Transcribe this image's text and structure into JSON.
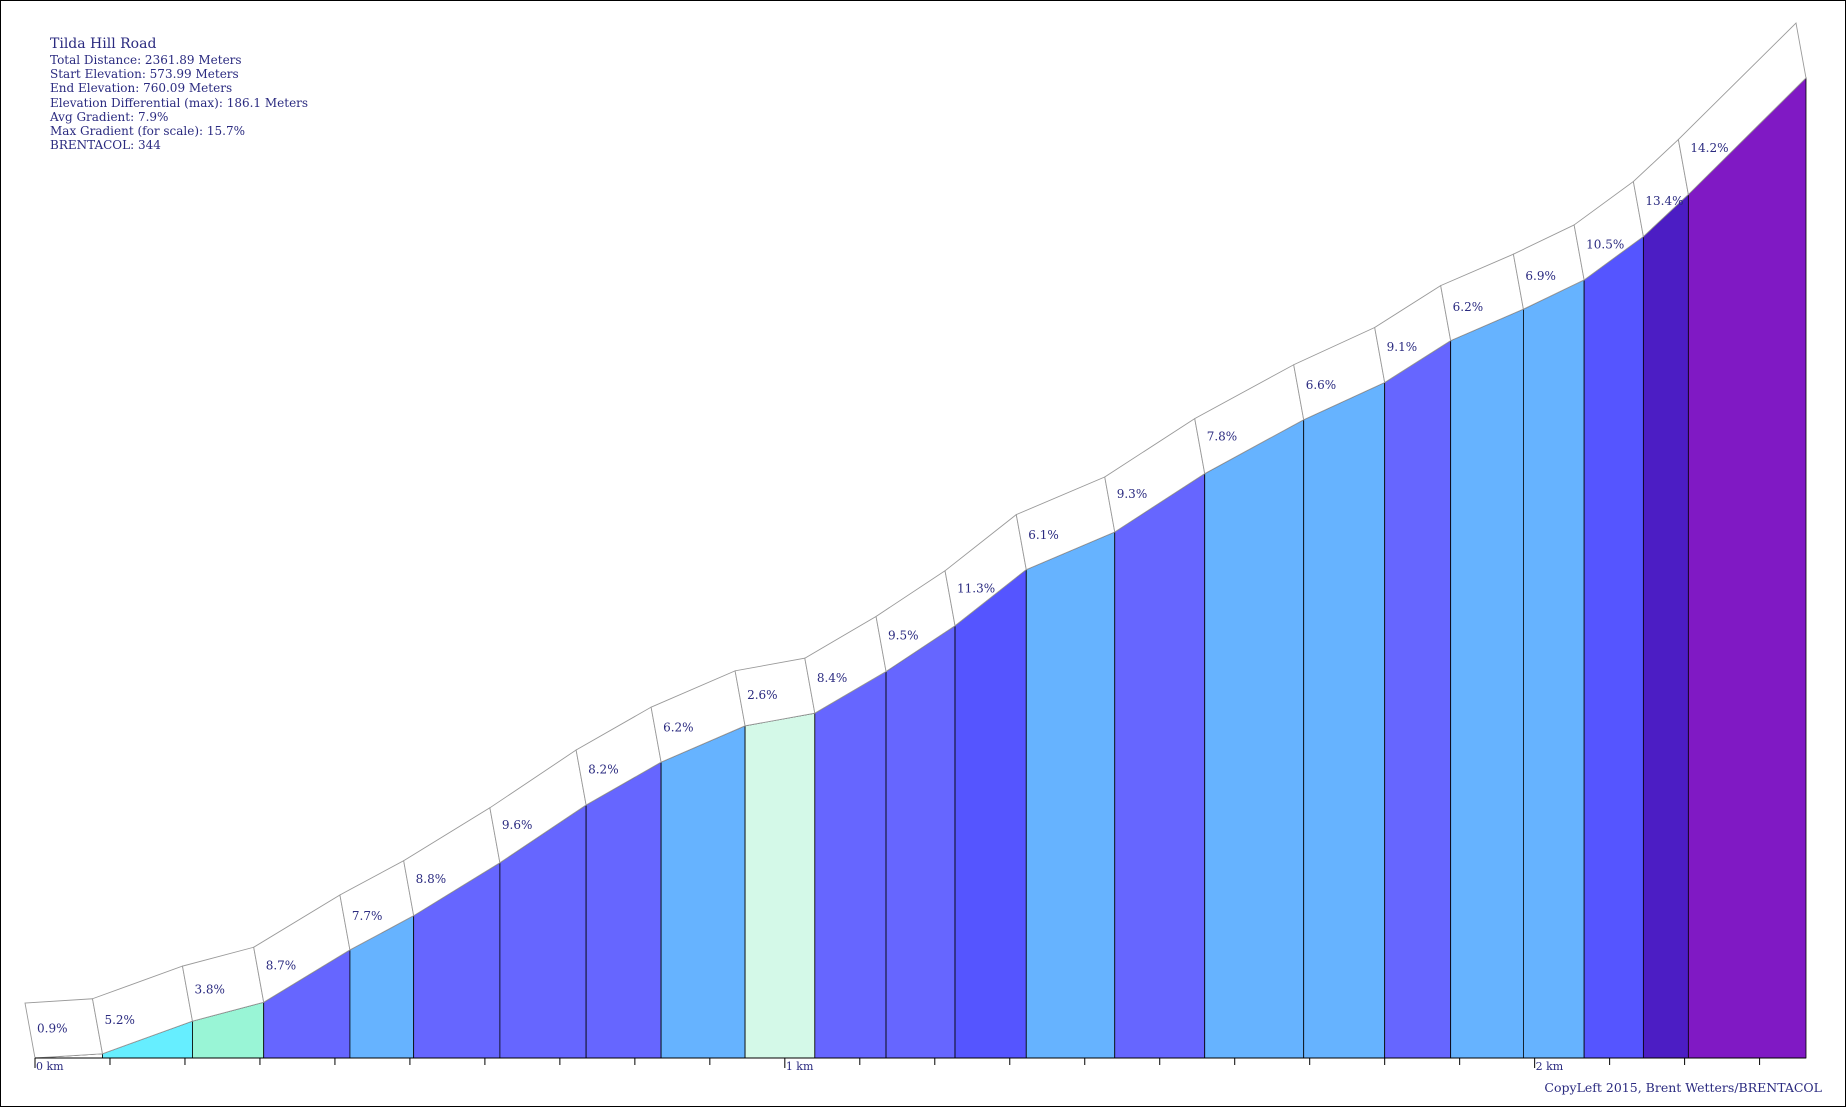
{
  "info": {
    "title": "Tilda Hill Road",
    "total_distance": "Total Distance: 2361.89 Meters",
    "start_elevation": "Start Elevation: 573.99 Meters",
    "end_elevation": "End Elevation: 760.09 Meters",
    "elev_diff": "Elevation Differential (max): 186.1 Meters",
    "avg_gradient": "Avg Gradient: 7.9%",
    "max_gradient": "Max Gradient (for scale): 15.7%",
    "brentacol": "BRENTACOL: 344"
  },
  "copyright": "CopyLeft 2015, Brent Wetters/BRENTACOL",
  "chart_data": {
    "type": "area",
    "title": "Tilda Hill Road",
    "xlabel": "",
    "ylabel": "",
    "x_unit": "km",
    "x_ticks": [
      "0 km",
      "1 km",
      "2 km"
    ],
    "xlim": [
      0,
      2.36189
    ],
    "ylim": [
      573.99,
      760.09
    ],
    "segments": [
      {
        "start_km": 0.0,
        "end_km": 0.09,
        "gradient": "0.9%",
        "color": "#ffffff"
      },
      {
        "start_km": 0.09,
        "end_km": 0.21,
        "gradient": "5.2%",
        "color": "#66eeff"
      },
      {
        "start_km": 0.21,
        "end_km": 0.305,
        "gradient": "3.8%",
        "color": "#99f5d6"
      },
      {
        "start_km": 0.305,
        "end_km": 0.42,
        "gradient": "8.7%",
        "color": "#6666ff"
      },
      {
        "start_km": 0.42,
        "end_km": 0.505,
        "gradient": "7.7%",
        "color": "#66b3ff"
      },
      {
        "start_km": 0.505,
        "end_km": 0.62,
        "gradient": "8.8%",
        "color": "#6666ff"
      },
      {
        "start_km": 0.62,
        "end_km": 0.735,
        "gradient": "9.6%",
        "color": "#6666ff"
      },
      {
        "start_km": 0.735,
        "end_km": 0.835,
        "gradient": "8.2%",
        "color": "#6666ff"
      },
      {
        "start_km": 0.835,
        "end_km": 0.947,
        "gradient": "6.2%",
        "color": "#66b3ff"
      },
      {
        "start_km": 0.947,
        "end_km": 1.04,
        "gradient": "2.6%",
        "color": "#d4f9e8"
      },
      {
        "start_km": 1.04,
        "end_km": 1.135,
        "gradient": "8.4%",
        "color": "#6666ff"
      },
      {
        "start_km": 1.135,
        "end_km": 1.227,
        "gradient": "9.5%",
        "color": "#6666ff"
      },
      {
        "start_km": 1.227,
        "end_km": 1.322,
        "gradient": "11.3%",
        "color": "#5555ff"
      },
      {
        "start_km": 1.322,
        "end_km": 1.44,
        "gradient": "6.1%",
        "color": "#66b3ff"
      },
      {
        "start_km": 1.44,
        "end_km": 1.56,
        "gradient": "9.3%",
        "color": "#6666ff"
      },
      {
        "start_km": 1.56,
        "end_km": 1.692,
        "gradient": "7.8%",
        "color": "#66b3ff"
      },
      {
        "start_km": 1.692,
        "end_km": 1.8,
        "gradient": "6.6%",
        "color": "#66b3ff"
      },
      {
        "start_km": 1.8,
        "end_km": 1.888,
        "gradient": "9.1%",
        "color": "#6666ff"
      },
      {
        "start_km": 1.888,
        "end_km": 1.985,
        "gradient": "6.2%",
        "color": "#66b3ff"
      },
      {
        "start_km": 1.985,
        "end_km": 2.066,
        "gradient": "6.9%",
        "color": "#66b3ff"
      },
      {
        "start_km": 2.066,
        "end_km": 2.145,
        "gradient": "10.5%",
        "color": "#5555ff"
      },
      {
        "start_km": 2.145,
        "end_km": 2.205,
        "gradient": "13.4%",
        "color": "#4c1dc4"
      },
      {
        "start_km": 2.205,
        "end_km": 2.36189,
        "gradient": "14.2%",
        "color": "#8019c4"
      }
    ]
  }
}
